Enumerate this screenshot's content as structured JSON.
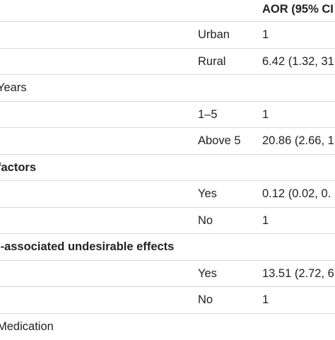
{
  "header": {
    "aor": "AOR (95% CI"
  },
  "rows": [
    {
      "label": "",
      "category": "Urban",
      "aor": "1"
    },
    {
      "label": "",
      "category": "Rural",
      "aor": "6.42 (1.32, 31"
    },
    {
      "label": "Years",
      "category": "",
      "aor": ""
    },
    {
      "label": "",
      "category": "1–5",
      "aor": "1"
    },
    {
      "label": "",
      "category": "Above 5",
      "aor": "20.86 (2.66, 1"
    },
    {
      "label": "factors",
      "category": "",
      "aor": ""
    },
    {
      "label": "",
      "category": "Yes",
      "aor": "0.12 (0.02, 0."
    },
    {
      "label": "",
      "category": "No",
      "aor": "1"
    },
    {
      "label": "l-associated undesirable effects",
      "category": "",
      "aor": ""
    },
    {
      "label": "",
      "category": "Yes",
      "aor": "13.51 (2.72, 6"
    },
    {
      "label": "",
      "category": "No",
      "aor": "1"
    },
    {
      "label": "Medication",
      "category": "",
      "aor": ""
    }
  ]
}
